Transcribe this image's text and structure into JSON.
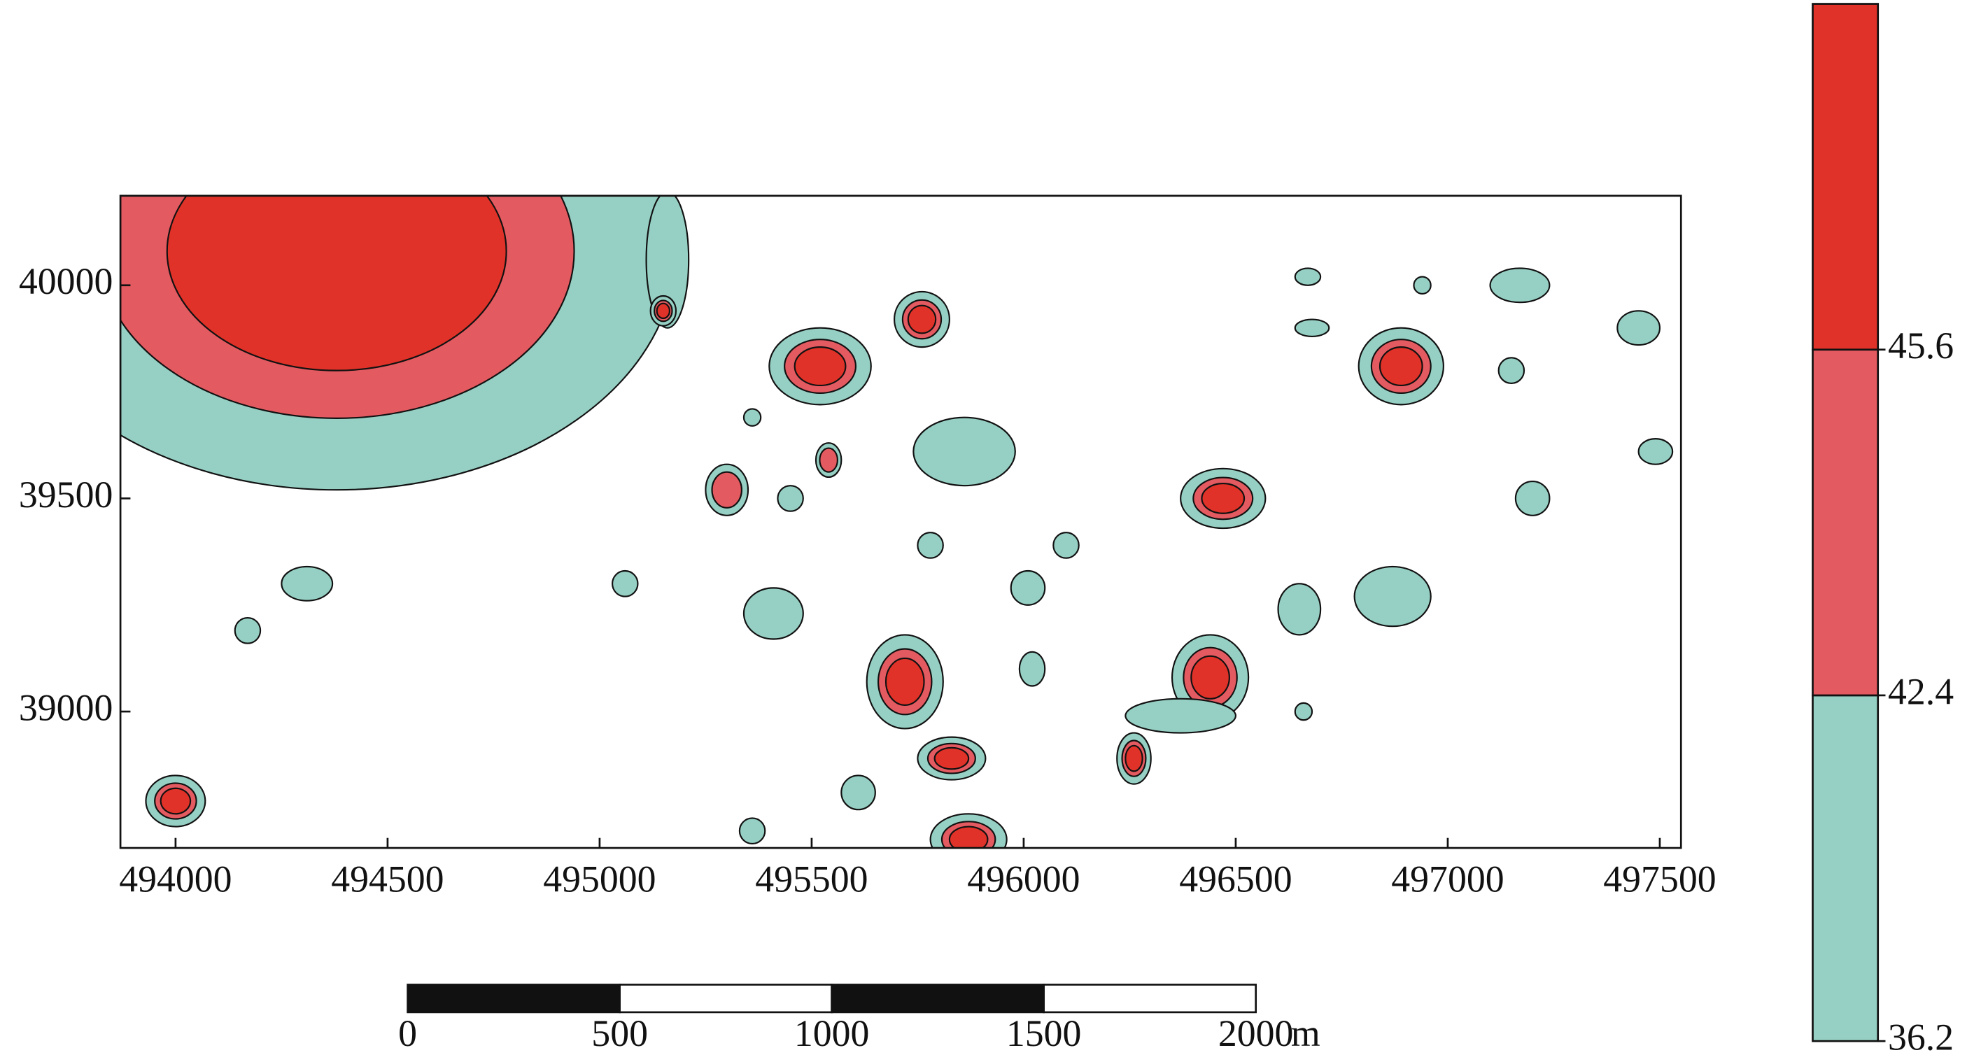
{
  "chart_data": {
    "type": "contour",
    "xlim": [
      493870,
      497550
    ],
    "xticks": [
      494000,
      494500,
      495000,
      495500,
      496000,
      496500,
      497000,
      497500
    ],
    "ylim": [
      38680,
      40210
    ],
    "yticks": [
      39000,
      39500,
      40000
    ],
    "legend": {
      "levels": [
        36.2,
        42.4,
        45.6
      ],
      "colors": [
        "#96d0c4",
        "#e45a61",
        "#e03228"
      ]
    },
    "scale_bar": {
      "ticks": [
        0,
        500,
        1000,
        1500,
        2000
      ],
      "unit": "m"
    },
    "features": [
      {
        "x": 494380,
        "y": 40080,
        "rx": 800,
        "ry": 560,
        "level": 45.6
      },
      {
        "x": 495160,
        "y": 40060,
        "rx": 50,
        "ry": 160,
        "level": 36.2
      },
      {
        "x": 495150,
        "y": 39940,
        "rx": 30,
        "ry": 35,
        "level": 45.6
      },
      {
        "x": 495520,
        "y": 39810,
        "rx": 120,
        "ry": 90,
        "level": 45.6
      },
      {
        "x": 495760,
        "y": 39920,
        "rx": 65,
        "ry": 65,
        "level": 45.6
      },
      {
        "x": 496890,
        "y": 39810,
        "rx": 100,
        "ry": 90,
        "level": 45.6
      },
      {
        "x": 497170,
        "y": 40000,
        "rx": 70,
        "ry": 40,
        "level": 36.2
      },
      {
        "x": 496670,
        "y": 40020,
        "rx": 30,
        "ry": 20,
        "level": 36.2
      },
      {
        "x": 496940,
        "y": 40000,
        "rx": 20,
        "ry": 20,
        "level": 36.2
      },
      {
        "x": 496680,
        "y": 39900,
        "rx": 40,
        "ry": 20,
        "level": 36.2
      },
      {
        "x": 497450,
        "y": 39900,
        "rx": 50,
        "ry": 40,
        "level": 36.2
      },
      {
        "x": 497150,
        "y": 39800,
        "rx": 30,
        "ry": 30,
        "level": 36.2
      },
      {
        "x": 497490,
        "y": 39610,
        "rx": 40,
        "ry": 30,
        "level": 36.2
      },
      {
        "x": 495860,
        "y": 39610,
        "rx": 120,
        "ry": 80,
        "level": 36.2
      },
      {
        "x": 495360,
        "y": 39690,
        "rx": 20,
        "ry": 20,
        "level": 36.2
      },
      {
        "x": 495300,
        "y": 39520,
        "rx": 50,
        "ry": 60,
        "level": 42.4
      },
      {
        "x": 495540,
        "y": 39590,
        "rx": 30,
        "ry": 40,
        "level": 42.4
      },
      {
        "x": 495450,
        "y": 39500,
        "rx": 30,
        "ry": 30,
        "level": 36.2
      },
      {
        "x": 496470,
        "y": 39500,
        "rx": 100,
        "ry": 70,
        "level": 45.6
      },
      {
        "x": 497200,
        "y": 39500,
        "rx": 40,
        "ry": 40,
        "level": 36.2
      },
      {
        "x": 495780,
        "y": 39390,
        "rx": 30,
        "ry": 30,
        "level": 36.2
      },
      {
        "x": 496100,
        "y": 39390,
        "rx": 30,
        "ry": 30,
        "level": 36.2
      },
      {
        "x": 494310,
        "y": 39300,
        "rx": 60,
        "ry": 40,
        "level": 36.2
      },
      {
        "x": 494170,
        "y": 39190,
        "rx": 30,
        "ry": 30,
        "level": 36.2
      },
      {
        "x": 495060,
        "y": 39300,
        "rx": 30,
        "ry": 30,
        "level": 36.2
      },
      {
        "x": 496010,
        "y": 39290,
        "rx": 40,
        "ry": 40,
        "level": 36.2
      },
      {
        "x": 496870,
        "y": 39270,
        "rx": 90,
        "ry": 70,
        "level": 36.2
      },
      {
        "x": 496650,
        "y": 39240,
        "rx": 50,
        "ry": 60,
        "level": 36.2
      },
      {
        "x": 495410,
        "y": 39230,
        "rx": 70,
        "ry": 60,
        "level": 36.2
      },
      {
        "x": 495720,
        "y": 39070,
        "rx": 90,
        "ry": 110,
        "level": 45.6
      },
      {
        "x": 496020,
        "y": 39100,
        "rx": 30,
        "ry": 40,
        "level": 36.2
      },
      {
        "x": 496440,
        "y": 39080,
        "rx": 90,
        "ry": 100,
        "level": 45.6
      },
      {
        "x": 496370,
        "y": 38990,
        "rx": 130,
        "ry": 40,
        "level": 36.2
      },
      {
        "x": 495830,
        "y": 38890,
        "rx": 80,
        "ry": 50,
        "level": 45.6
      },
      {
        "x": 496260,
        "y": 38890,
        "rx": 40,
        "ry": 60,
        "level": 45.6
      },
      {
        "x": 495610,
        "y": 38810,
        "rx": 40,
        "ry": 40,
        "level": 36.2
      },
      {
        "x": 494000,
        "y": 38790,
        "rx": 70,
        "ry": 60,
        "level": 45.6
      },
      {
        "x": 495360,
        "y": 38720,
        "rx": 30,
        "ry": 30,
        "level": 36.2
      },
      {
        "x": 495870,
        "y": 38700,
        "rx": 90,
        "ry": 60,
        "level": 45.6
      },
      {
        "x": 496660,
        "y": 39000,
        "rx": 20,
        "ry": 20,
        "level": 36.2
      }
    ]
  }
}
